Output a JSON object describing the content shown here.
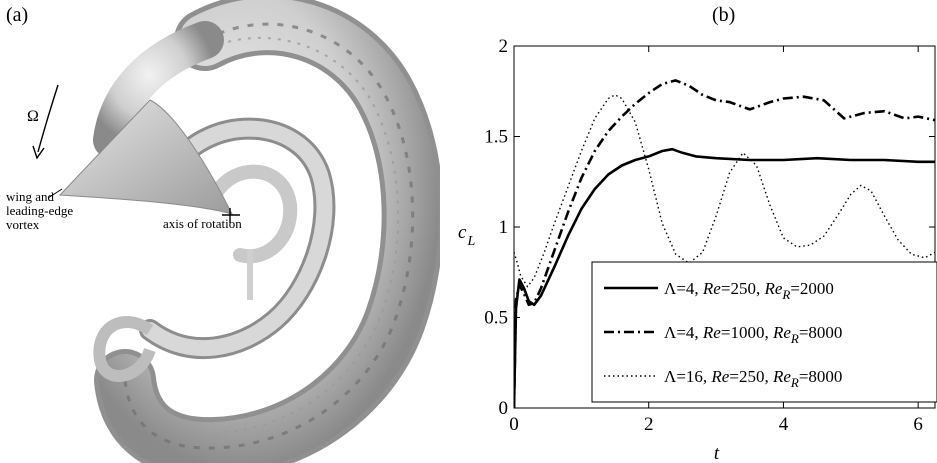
{
  "panel_a": {
    "label": "(a)",
    "omega": "Ω",
    "wing_label_lines": [
      "wing and",
      "leading-edge",
      "vortex"
    ],
    "axis_label": "axis of rotation"
  },
  "panel_b": {
    "label": "(b)"
  },
  "chart_data": {
    "type": "line",
    "xlabel": "t",
    "ylabel": "c",
    "ylabel_sub": "L",
    "xlim": [
      0,
      6.25
    ],
    "ylim": [
      0,
      2
    ],
    "xticks": [
      0,
      2,
      4,
      6
    ],
    "yticks": [
      0,
      0.5,
      1,
      1.5,
      2
    ],
    "ytick_labels": [
      "0",
      "0.5",
      "1",
      "1.5",
      "2"
    ],
    "grid": false,
    "legend_placement": "lower-right",
    "series": [
      {
        "legend": [
          "Λ=4, ",
          "Re",
          "=250, ",
          "Re",
          "R",
          "=2000"
        ],
        "style": "solid",
        "x": [
          0,
          0.03,
          0.08,
          0.15,
          0.22,
          0.3,
          0.4,
          0.6,
          0.8,
          1.0,
          1.2,
          1.4,
          1.6,
          1.8,
          2.0,
          2.2,
          2.35,
          2.5,
          2.7,
          3.0,
          3.5,
          4.0,
          4.5,
          5.0,
          5.5,
          6.0,
          6.25
        ],
        "y": [
          0,
          0.55,
          0.71,
          0.66,
          0.59,
          0.57,
          0.62,
          0.78,
          0.95,
          1.1,
          1.21,
          1.29,
          1.34,
          1.37,
          1.39,
          1.42,
          1.43,
          1.41,
          1.39,
          1.38,
          1.37,
          1.37,
          1.38,
          1.37,
          1.37,
          1.36,
          1.36
        ]
      },
      {
        "legend": [
          "Λ=4, ",
          "Re",
          "=1000, ",
          "Re",
          "R",
          "=8000"
        ],
        "style": "dash-dot",
        "x": [
          0,
          0.03,
          0.08,
          0.15,
          0.22,
          0.3,
          0.4,
          0.6,
          0.8,
          1.0,
          1.2,
          1.4,
          1.6,
          1.8,
          2.0,
          2.2,
          2.4,
          2.6,
          2.8,
          3.0,
          3.2,
          3.5,
          3.8,
          4.0,
          4.3,
          4.6,
          4.9,
          5.2,
          5.5,
          5.8,
          6.0,
          6.25
        ],
        "y": [
          0,
          0.6,
          0.68,
          0.63,
          0.57,
          0.58,
          0.66,
          0.87,
          1.08,
          1.27,
          1.42,
          1.53,
          1.61,
          1.68,
          1.74,
          1.79,
          1.81,
          1.78,
          1.73,
          1.7,
          1.69,
          1.65,
          1.69,
          1.71,
          1.72,
          1.7,
          1.6,
          1.63,
          1.64,
          1.6,
          1.61,
          1.59
        ]
      },
      {
        "legend": [
          "Λ=16, ",
          "Re",
          "=250, ",
          "Re",
          "R",
          "=8000"
        ],
        "style": "dotted",
        "x": [
          0,
          0.05,
          0.1,
          0.2,
          0.3,
          0.45,
          0.6,
          0.8,
          1.0,
          1.2,
          1.4,
          1.5,
          1.6,
          1.8,
          2.0,
          2.2,
          2.4,
          2.6,
          2.8,
          3.0,
          3.2,
          3.4,
          3.6,
          3.8,
          4.0,
          4.2,
          4.4,
          4.6,
          4.8,
          5.0,
          5.15,
          5.3,
          5.5,
          5.7,
          5.9,
          6.1,
          6.25
        ],
        "y": [
          0.86,
          0.8,
          0.73,
          0.67,
          0.72,
          0.86,
          1.02,
          1.22,
          1.42,
          1.6,
          1.71,
          1.73,
          1.71,
          1.58,
          1.32,
          1.02,
          0.85,
          0.8,
          0.86,
          1.06,
          1.3,
          1.41,
          1.34,
          1.12,
          0.94,
          0.89,
          0.9,
          0.95,
          1.06,
          1.18,
          1.23,
          1.2,
          1.06,
          0.93,
          0.85,
          0.83,
          0.86
        ]
      }
    ]
  }
}
